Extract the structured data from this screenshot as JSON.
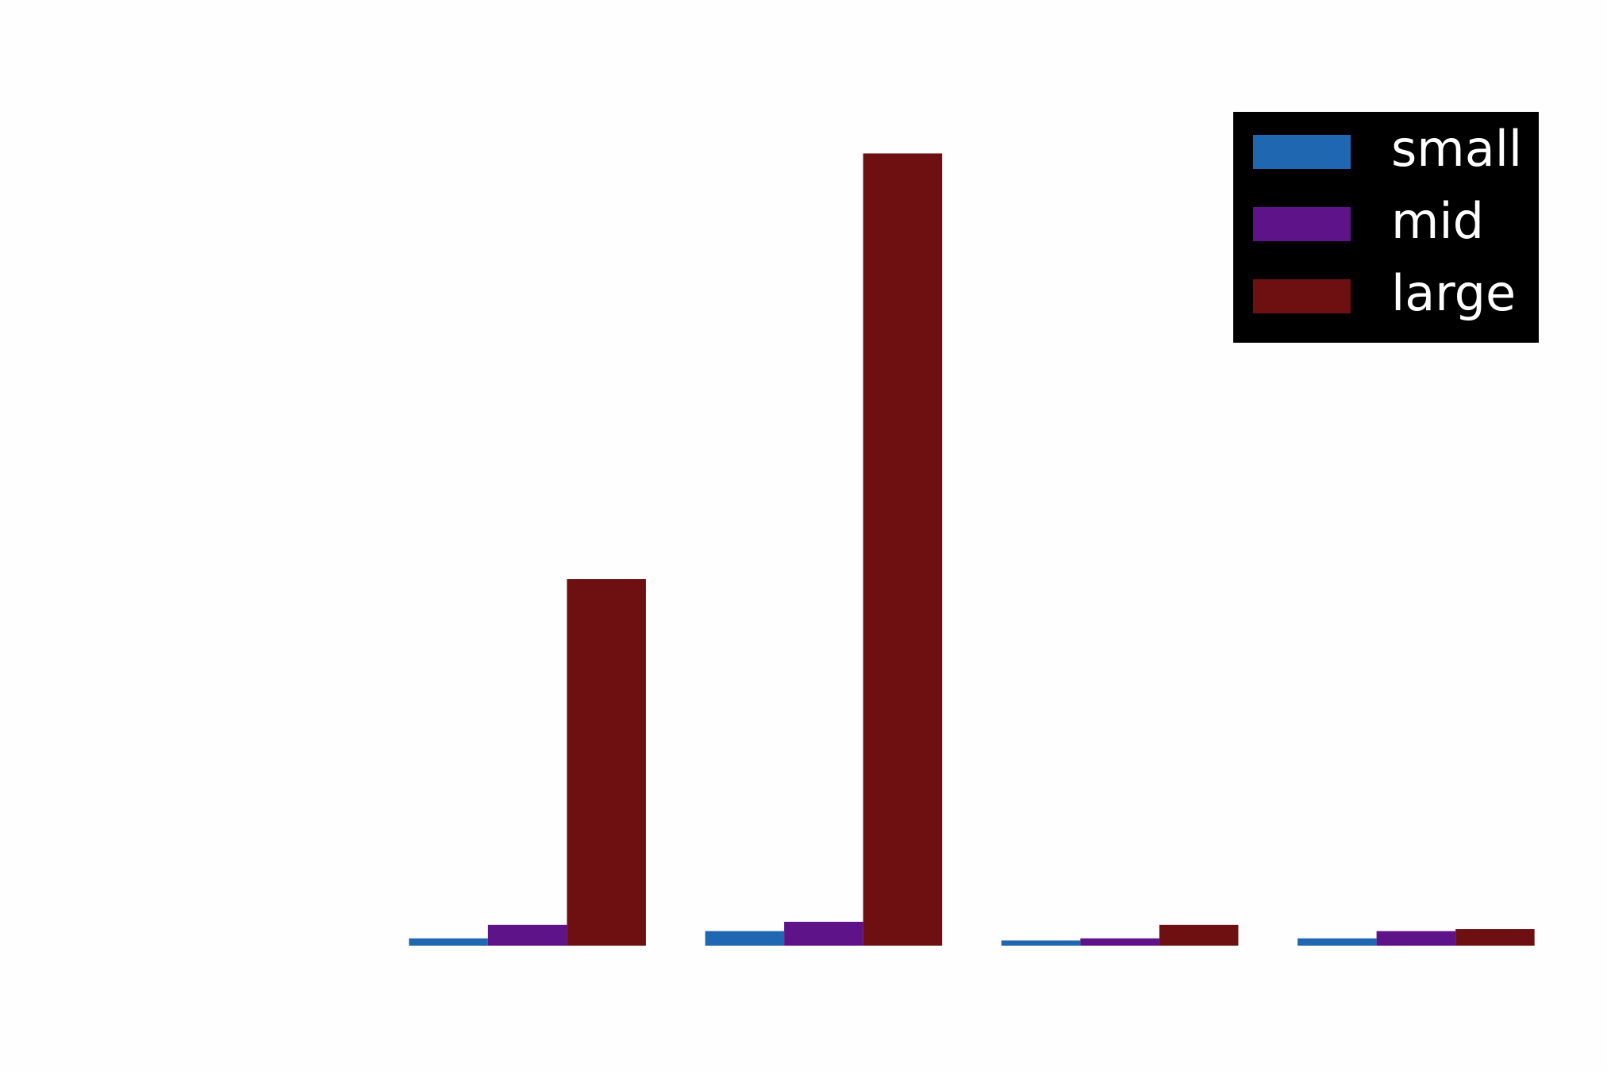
{
  "chart_data": {
    "type": "bar",
    "categories": [
      null,
      null,
      null,
      null
    ],
    "series": [
      {
        "name": "small",
        "color": "#1f67b1",
        "values": [
          7,
          14,
          5,
          7
        ]
      },
      {
        "name": "mid",
        "color": "#5e1388",
        "values": [
          20,
          23,
          7,
          14
        ]
      },
      {
        "name": "large",
        "color": "#6e1012",
        "values": [
          353,
          763,
          20,
          16
        ]
      }
    ],
    "ylim": [
      0,
      800
    ],
    "legend": "upper right"
  }
}
